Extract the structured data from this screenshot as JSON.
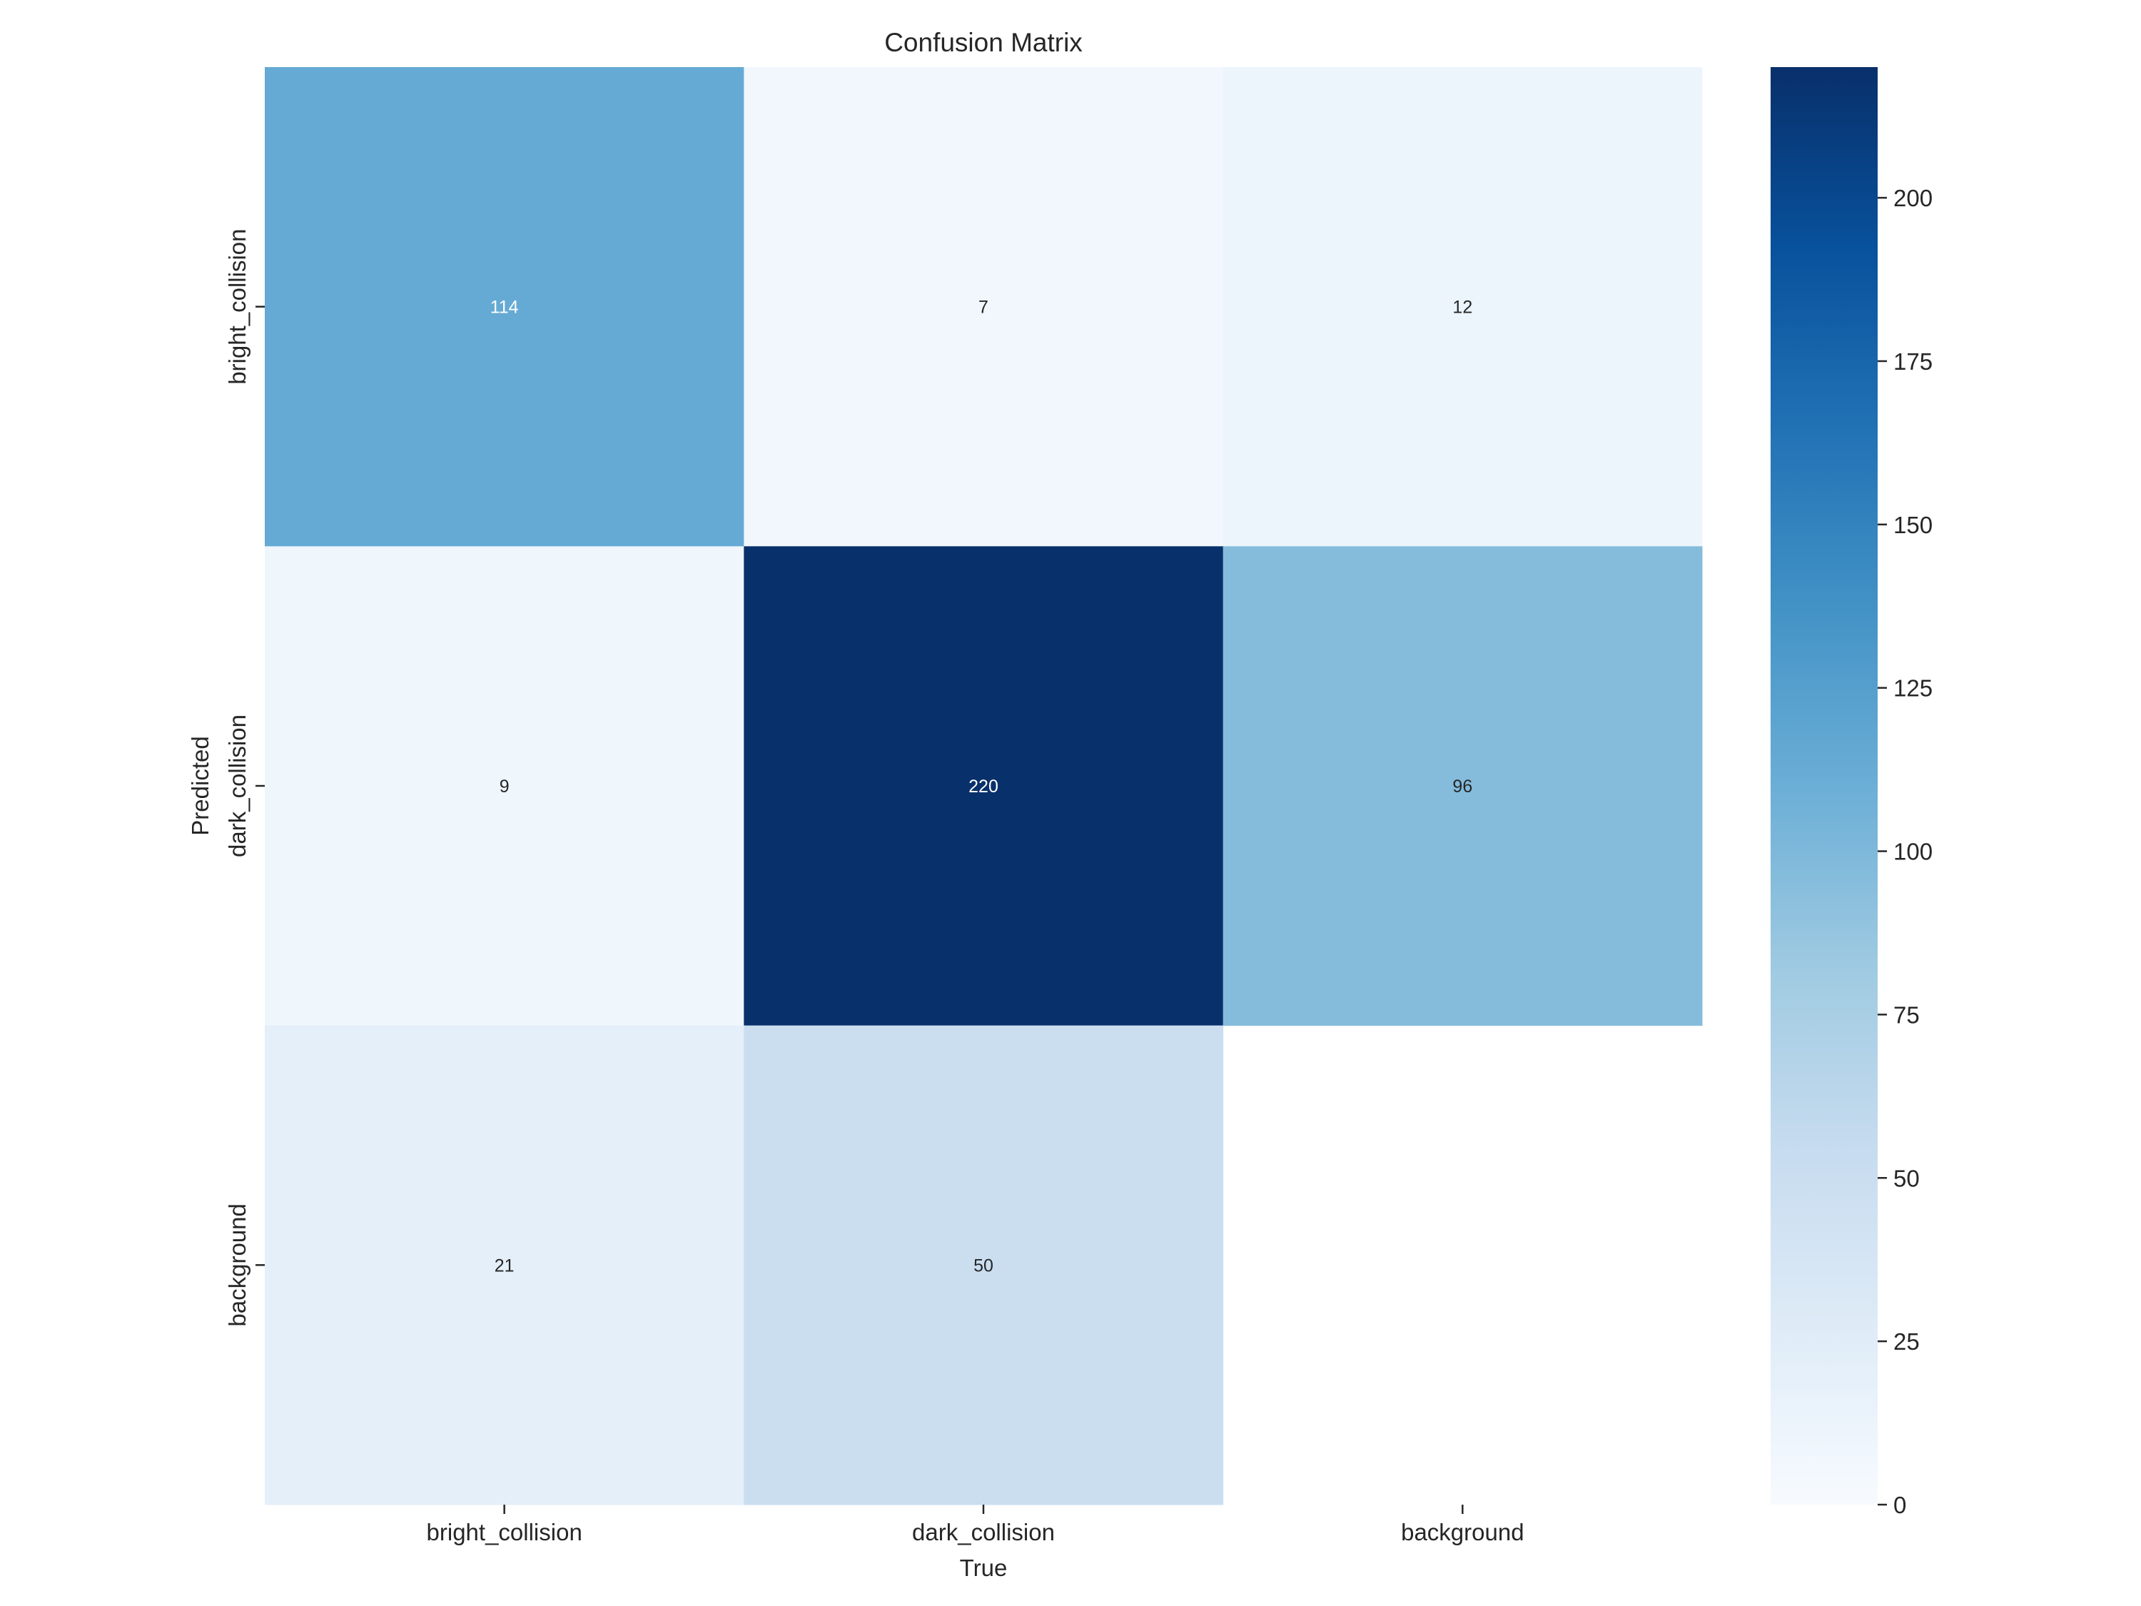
{
  "chart_data": {
    "type": "heatmap",
    "title": "Confusion Matrix",
    "xlabel": "True",
    "ylabel": "Predicted",
    "x_categories": [
      "bright_collision",
      "dark_collision",
      "background"
    ],
    "y_categories": [
      "bright_collision",
      "dark_collision",
      "background"
    ],
    "values": [
      [
        114,
        7,
        12
      ],
      [
        9,
        220,
        96
      ],
      [
        21,
        50,
        null
      ]
    ],
    "colormap": "Blues",
    "colormap_stops": [
      "#f7fbff",
      "#deebf7",
      "#c6dbef",
      "#9ecae1",
      "#6baed6",
      "#4292c6",
      "#2171b5",
      "#08519c",
      "#08306b"
    ],
    "vmin": 0,
    "vmax": 220,
    "colorbar_ticks": [
      0,
      25,
      50,
      75,
      100,
      125,
      150,
      175,
      200
    ],
    "annotations": true,
    "grid": false
  }
}
